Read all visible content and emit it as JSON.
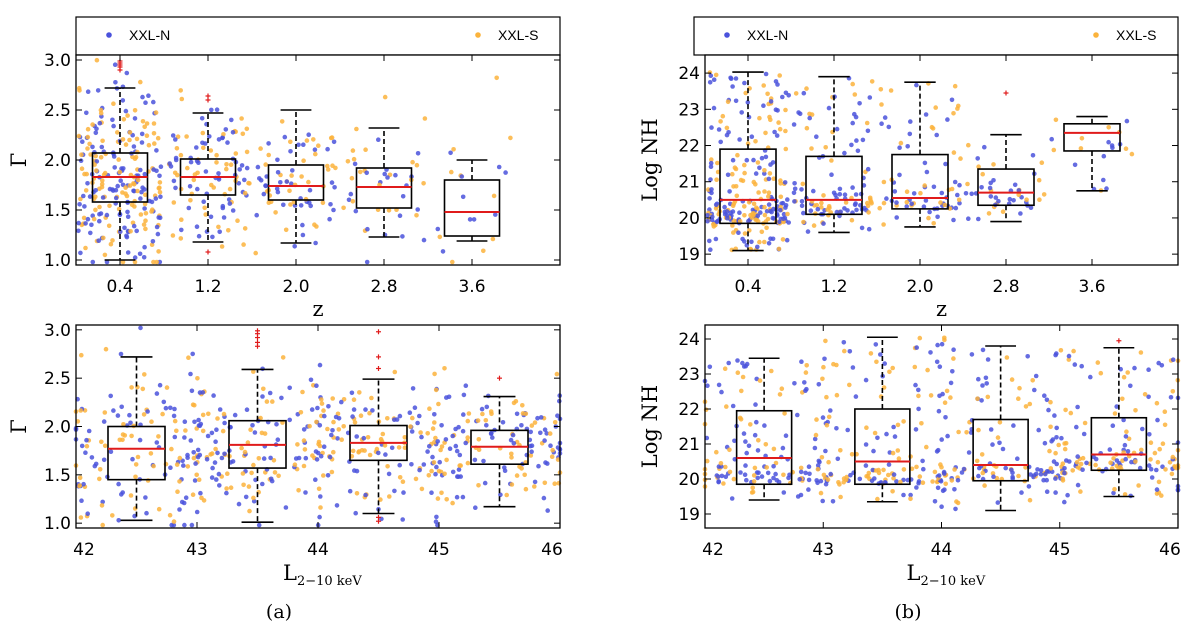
{
  "colors": {
    "xxl_n": "#4a52dc",
    "xxl_s": "#fbb33c",
    "median": "#e01b1b",
    "outlier": "#e01b1b"
  },
  "legend": {
    "items": [
      "XXL-N",
      "XXL-S"
    ],
    "placement": "top",
    "marker": "dot"
  },
  "panel_labels": [
    "(a)",
    "(b)"
  ],
  "chart_data": [
    {
      "id": "a-top",
      "type": "scatter",
      "overlay": "boxplot",
      "grid": false,
      "xlabel": "z",
      "ylabel": "Γ",
      "xlim": [
        0.0,
        4.4
      ],
      "ylim": [
        0.95,
        3.05
      ],
      "xticks": [
        0.4,
        1.2,
        2.0,
        2.8,
        3.6
      ],
      "xtick_labels": [
        "0.4",
        "1.2",
        "2.0",
        "2.8",
        "3.6"
      ],
      "yticks": [
        1.0,
        1.5,
        2.0,
        2.5,
        3.0
      ],
      "ytick_labels": [
        "1.0",
        "1.5",
        "2.0",
        "2.5",
        "3.0"
      ],
      "series": [
        {
          "name": "XXL-N"
        },
        {
          "name": "XXL-S"
        }
      ],
      "boxes": [
        {
          "center": 0.4,
          "q1": 1.58,
          "median": 1.83,
          "q3": 2.07,
          "whislo": 1.0,
          "whishi": 2.72,
          "outliers": [
            2.9,
            2.93,
            2.95,
            2.97,
            2.99
          ]
        },
        {
          "center": 1.2,
          "q1": 1.65,
          "median": 1.83,
          "q3": 2.01,
          "whislo": 1.18,
          "whishi": 2.47,
          "outliers": [
            1.08,
            2.6,
            2.64
          ]
        },
        {
          "center": 2.0,
          "q1": 1.6,
          "median": 1.74,
          "q3": 1.95,
          "whislo": 1.17,
          "whishi": 2.5,
          "outliers": []
        },
        {
          "center": 2.8,
          "q1": 1.52,
          "median": 1.73,
          "q3": 1.92,
          "whislo": 1.23,
          "whishi": 2.32,
          "outliers": []
        },
        {
          "center": 3.6,
          "q1": 1.24,
          "median": 1.48,
          "q3": 1.8,
          "whislo": 1.19,
          "whishi": 2.0,
          "outliers": []
        }
      ]
    },
    {
      "id": "a-bottom",
      "type": "scatter",
      "overlay": "boxplot",
      "grid": false,
      "xlabel": "L2−10 keV",
      "xlabel_main": "L",
      "xlabel_sub": "2−10 keV",
      "ylabel": "Γ",
      "xlim": [
        42.0,
        46.0
      ],
      "ylim": [
        0.95,
        3.05
      ],
      "xticks": [
        42,
        43,
        44,
        45,
        46
      ],
      "xtick_labels": [
        "42",
        "43",
        "44",
        "45",
        "46"
      ],
      "yticks": [
        1.0,
        1.5,
        2.0,
        2.5,
        3.0
      ],
      "ytick_labels": [
        "1.0",
        "1.5",
        "2.0",
        "2.5",
        "3.0"
      ],
      "series": [
        {
          "name": "XXL-N"
        },
        {
          "name": "XXL-S"
        }
      ],
      "boxes": [
        {
          "center": 42.5,
          "q1": 1.45,
          "median": 1.77,
          "q3": 2.0,
          "whislo": 1.03,
          "whishi": 2.72,
          "outliers": []
        },
        {
          "center": 43.5,
          "q1": 1.57,
          "median": 1.81,
          "q3": 2.06,
          "whislo": 1.01,
          "whishi": 2.59,
          "outliers": [
            2.83,
            2.87,
            2.92,
            2.96,
            2.99
          ]
        },
        {
          "center": 44.5,
          "q1": 1.65,
          "median": 1.83,
          "q3": 2.01,
          "whislo": 1.1,
          "whishi": 2.49,
          "outliers": [
            1.02,
            1.06,
            2.6,
            2.72,
            2.98
          ]
        },
        {
          "center": 45.5,
          "q1": 1.61,
          "median": 1.79,
          "q3": 1.96,
          "whislo": 1.17,
          "whishi": 2.31,
          "outliers": [
            2.5
          ]
        }
      ]
    },
    {
      "id": "b-top",
      "type": "scatter",
      "overlay": "boxplot",
      "grid": false,
      "xlabel": "z",
      "ylabel": "Log NH",
      "xlim": [
        0.0,
        4.4
      ],
      "ylim": [
        18.7,
        24.5
      ],
      "xticks": [
        0.4,
        1.2,
        2.0,
        2.8,
        3.6
      ],
      "xtick_labels": [
        "0.4",
        "1.2",
        "2.0",
        "2.8",
        "3.6"
      ],
      "yticks": [
        19,
        20,
        21,
        22,
        23,
        24
      ],
      "ytick_labels": [
        "19",
        "20",
        "21",
        "22",
        "23",
        "24"
      ],
      "series": [
        {
          "name": "XXL-N"
        },
        {
          "name": "XXL-S"
        }
      ],
      "boxes": [
        {
          "center": 0.4,
          "q1": 19.85,
          "median": 20.5,
          "q3": 21.9,
          "whislo": 19.1,
          "whishi": 24.03,
          "outliers": []
        },
        {
          "center": 1.2,
          "q1": 20.1,
          "median": 20.5,
          "q3": 21.7,
          "whislo": 19.6,
          "whishi": 23.9,
          "outliers": []
        },
        {
          "center": 2.0,
          "q1": 20.25,
          "median": 20.55,
          "q3": 21.75,
          "whislo": 19.75,
          "whishi": 23.75,
          "outliers": []
        },
        {
          "center": 2.8,
          "q1": 20.35,
          "median": 20.7,
          "q3": 21.35,
          "whislo": 19.9,
          "whishi": 22.3,
          "outliers": [
            23.45
          ]
        },
        {
          "center": 3.6,
          "q1": 21.85,
          "median": 22.35,
          "q3": 22.6,
          "whislo": 20.75,
          "whishi": 22.8,
          "outliers": []
        }
      ]
    },
    {
      "id": "b-bottom",
      "type": "scatter",
      "overlay": "boxplot",
      "grid": false,
      "xlabel": "L2−10 keV",
      "xlabel_main": "L",
      "xlabel_sub": "2−10 keV",
      "ylabel": "Log NH",
      "xlim": [
        42.0,
        46.0
      ],
      "ylim": [
        18.6,
        24.4
      ],
      "xticks": [
        42,
        43,
        44,
        45,
        46
      ],
      "xtick_labels": [
        "42",
        "43",
        "44",
        "45",
        "46"
      ],
      "yticks": [
        19,
        20,
        21,
        22,
        23,
        24
      ],
      "ytick_labels": [
        "19",
        "20",
        "21",
        "22",
        "23",
        "24"
      ],
      "series": [
        {
          "name": "XXL-N"
        },
        {
          "name": "XXL-S"
        }
      ],
      "boxes": [
        {
          "center": 42.5,
          "q1": 19.85,
          "median": 20.6,
          "q3": 21.95,
          "whislo": 19.4,
          "whishi": 23.45,
          "outliers": []
        },
        {
          "center": 43.5,
          "q1": 19.85,
          "median": 20.5,
          "q3": 22.0,
          "whislo": 19.35,
          "whishi": 24.05,
          "outliers": []
        },
        {
          "center": 44.5,
          "q1": 19.95,
          "median": 20.4,
          "q3": 21.7,
          "whislo": 19.1,
          "whishi": 23.8,
          "outliers": []
        },
        {
          "center": 45.5,
          "q1": 20.25,
          "median": 20.7,
          "q3": 21.75,
          "whislo": 19.5,
          "whishi": 23.75,
          "outliers": [
            23.95
          ]
        }
      ]
    }
  ]
}
